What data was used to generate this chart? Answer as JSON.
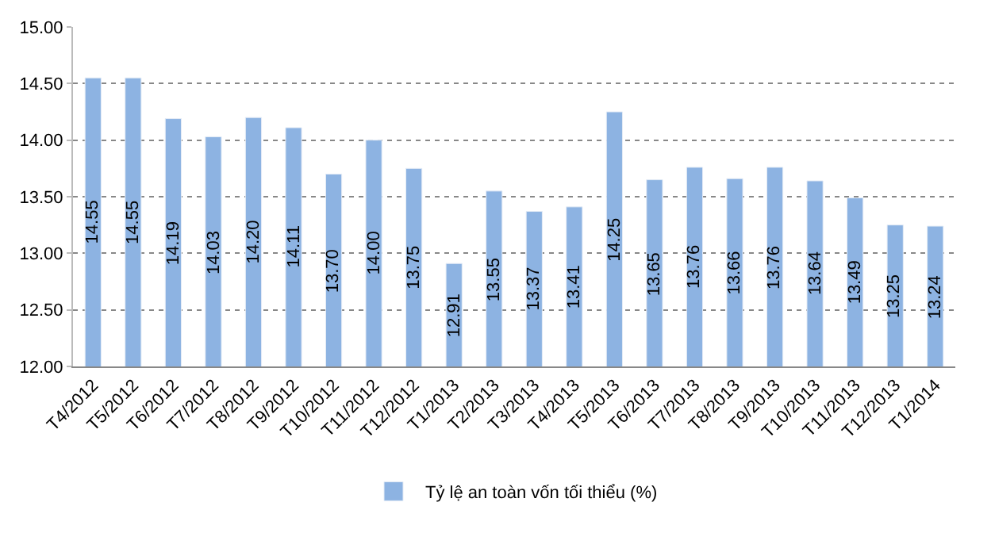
{
  "chart_data": {
    "type": "bar",
    "categories": [
      "T4/2012",
      "T5/2012",
      "T6/2012",
      "T7/2012",
      "T8/2012",
      "T9/2012",
      "T10/2012",
      "T11/2012",
      "T12/2012",
      "T1/2013",
      "T2/2013",
      "T3/2013",
      "T4/2013",
      "T5/2013",
      "T6/2013",
      "T7/2013",
      "T8/2013",
      "T9/2013",
      "T10/2013",
      "T11/2013",
      "T12/2013",
      "T1/2014"
    ],
    "series": [
      {
        "name": "Tỷ lệ an toàn vốn tối thiểu (%)",
        "color": "#8db3e2",
        "values": [
          14.55,
          14.55,
          14.19,
          14.03,
          14.2,
          14.11,
          13.7,
          14.0,
          13.75,
          12.91,
          13.55,
          13.37,
          13.41,
          14.25,
          13.65,
          13.76,
          13.66,
          13.76,
          13.64,
          13.49,
          13.25,
          13.24
        ],
        "value_labels": [
          "14.55",
          "14.55",
          "14.19",
          "14.03",
          "14.20",
          "14.11",
          "13.70",
          "14.00",
          "13.75",
          "12.91",
          "13.55",
          "13.37",
          "13.41",
          "14.25",
          "13.65",
          "13.76",
          "13.66",
          "13.76",
          "13.64",
          "13.49",
          "13.25",
          "13.24"
        ]
      }
    ],
    "ylim": [
      12,
      15
    ],
    "yticks": [
      {
        "value": 12,
        "label": "12.00"
      },
      {
        "value": 12.5,
        "label": "12.50"
      },
      {
        "value": 13,
        "label": "13.00"
      },
      {
        "value": 13.5,
        "label": "13.50"
      },
      {
        "value": 14,
        "label": "14.00"
      },
      {
        "value": 14.5,
        "label": "14.50"
      },
      {
        "value": 15,
        "label": "15.00"
      }
    ],
    "grid": "y",
    "legend": "bottom"
  }
}
